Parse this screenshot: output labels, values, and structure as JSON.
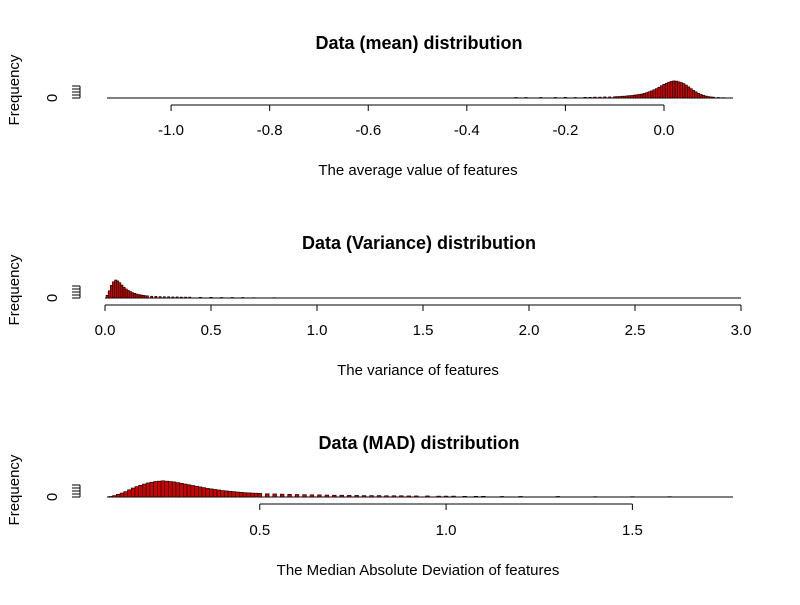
{
  "chart_data": [
    {
      "type": "histogram",
      "title": "Data (mean) distribution",
      "xlabel": "The average value of features",
      "ylabel": "Frequency",
      "xlim": [
        -1.13,
        0.14
      ],
      "ylim": [
        0,
        1
      ],
      "xticks": [
        -1.0,
        -0.8,
        -0.6,
        -0.4,
        -0.2,
        0.0
      ],
      "xtick_labels": [
        "-1.0",
        "-0.8",
        "-0.6",
        "-0.4",
        "-0.2",
        "0.0"
      ],
      "yticks": [
        0
      ],
      "ytick_labels": [
        "0"
      ],
      "bar_color": "#cc0000",
      "bin_width": 0.005,
      "x": [
        -0.3,
        -0.28,
        -0.25,
        -0.22,
        -0.2,
        -0.18,
        -0.16,
        -0.15,
        -0.14,
        -0.13,
        -0.12,
        -0.11,
        -0.1,
        -0.095,
        -0.09,
        -0.085,
        -0.08,
        -0.075,
        -0.07,
        -0.065,
        -0.06,
        -0.055,
        -0.05,
        -0.045,
        -0.04,
        -0.035,
        -0.03,
        -0.025,
        -0.02,
        -0.015,
        -0.01,
        -0.005,
        0.0,
        0.005,
        0.01,
        0.015,
        0.02,
        0.025,
        0.03,
        0.035,
        0.04,
        0.045,
        0.05,
        0.055,
        0.06,
        0.065,
        0.07,
        0.075,
        0.08,
        0.085,
        0.09,
        0.095,
        0.1,
        0.11,
        0.12
      ],
      "values": [
        0.03,
        0.03,
        0.03,
        0.03,
        0.04,
        0.03,
        0.04,
        0.04,
        0.05,
        0.05,
        0.06,
        0.06,
        0.07,
        0.08,
        0.08,
        0.1,
        0.1,
        0.12,
        0.13,
        0.14,
        0.16,
        0.18,
        0.2,
        0.22,
        0.26,
        0.3,
        0.35,
        0.4,
        0.46,
        0.52,
        0.6,
        0.68,
        0.76,
        0.82,
        0.88,
        0.92,
        0.95,
        0.94,
        0.9,
        0.86,
        0.8,
        0.72,
        0.62,
        0.52,
        0.42,
        0.34,
        0.26,
        0.2,
        0.15,
        0.11,
        0.08,
        0.06,
        0.05,
        0.03,
        0.02
      ]
    },
    {
      "type": "histogram",
      "title": "Data (Variance) distribution",
      "xlabel": "The variance of features",
      "ylabel": "Frequency",
      "xlim": [
        0.0,
        3.0
      ],
      "ylim": [
        0,
        1
      ],
      "xticks": [
        0.0,
        0.5,
        1.0,
        1.5,
        2.0,
        2.5,
        3.0
      ],
      "xtick_labels": [
        "0.0",
        "0.5",
        "1.0",
        "1.5",
        "2.0",
        "2.5",
        "3.0"
      ],
      "yticks": [
        0
      ],
      "ytick_labels": [
        "0"
      ],
      "bar_color": "#cc0000",
      "bin_width": 0.01,
      "x": [
        0.01,
        0.02,
        0.03,
        0.04,
        0.05,
        0.06,
        0.07,
        0.08,
        0.09,
        0.1,
        0.11,
        0.12,
        0.13,
        0.14,
        0.15,
        0.16,
        0.17,
        0.18,
        0.19,
        0.2,
        0.22,
        0.24,
        0.26,
        0.28,
        0.3,
        0.32,
        0.34,
        0.36,
        0.38,
        0.4,
        0.45,
        0.5,
        0.55,
        0.6,
        0.65,
        0.7,
        0.8
      ],
      "values": [
        0.15,
        0.4,
        0.7,
        0.9,
        1.0,
        0.95,
        0.85,
        0.72,
        0.6,
        0.5,
        0.42,
        0.36,
        0.3,
        0.26,
        0.22,
        0.19,
        0.17,
        0.15,
        0.13,
        0.12,
        0.1,
        0.09,
        0.08,
        0.07,
        0.07,
        0.06,
        0.06,
        0.05,
        0.05,
        0.05,
        0.04,
        0.04,
        0.03,
        0.03,
        0.03,
        0.02,
        0.02
      ]
    },
    {
      "type": "histogram",
      "title": "Data (MAD) distribution",
      "xlabel": "The Median Absolute Deviation of features",
      "ylabel": "Frequency",
      "xlim": [
        0.09,
        1.77
      ],
      "ylim": [
        0,
        1
      ],
      "xticks": [
        0.5,
        1.0,
        1.5
      ],
      "xtick_labels": [
        "0.5",
        "1.0",
        "1.5"
      ],
      "yticks": [
        0
      ],
      "ytick_labels": [
        "0"
      ],
      "bar_color": "#cc0000",
      "bin_width": 0.01,
      "x": [
        0.1,
        0.11,
        0.12,
        0.13,
        0.14,
        0.15,
        0.16,
        0.17,
        0.18,
        0.19,
        0.2,
        0.21,
        0.22,
        0.23,
        0.24,
        0.25,
        0.26,
        0.27,
        0.28,
        0.29,
        0.3,
        0.31,
        0.32,
        0.33,
        0.34,
        0.35,
        0.36,
        0.37,
        0.38,
        0.39,
        0.4,
        0.41,
        0.42,
        0.43,
        0.44,
        0.45,
        0.46,
        0.47,
        0.48,
        0.49,
        0.5,
        0.52,
        0.54,
        0.56,
        0.58,
        0.6,
        0.62,
        0.64,
        0.66,
        0.68,
        0.7,
        0.72,
        0.74,
        0.76,
        0.78,
        0.8,
        0.82,
        0.84,
        0.86,
        0.88,
        0.9,
        0.92,
        0.95,
        0.98,
        1.0,
        1.02,
        1.05,
        1.08,
        1.1,
        1.15,
        1.2,
        1.3,
        1.4,
        1.5,
        1.6
      ],
      "values": [
        0.03,
        0.08,
        0.15,
        0.22,
        0.3,
        0.4,
        0.5,
        0.58,
        0.65,
        0.72,
        0.78,
        0.82,
        0.86,
        0.88,
        0.9,
        0.88,
        0.86,
        0.84,
        0.8,
        0.76,
        0.72,
        0.68,
        0.64,
        0.6,
        0.56,
        0.52,
        0.48,
        0.45,
        0.42,
        0.39,
        0.36,
        0.34,
        0.32,
        0.3,
        0.28,
        0.26,
        0.24,
        0.23,
        0.22,
        0.21,
        0.2,
        0.18,
        0.17,
        0.16,
        0.15,
        0.14,
        0.13,
        0.12,
        0.12,
        0.11,
        0.1,
        0.1,
        0.09,
        0.09,
        0.08,
        0.08,
        0.08,
        0.07,
        0.07,
        0.07,
        0.06,
        0.06,
        0.06,
        0.05,
        0.05,
        0.05,
        0.04,
        0.04,
        0.04,
        0.03,
        0.03,
        0.03,
        0.02,
        0.02,
        0.02
      ]
    }
  ]
}
